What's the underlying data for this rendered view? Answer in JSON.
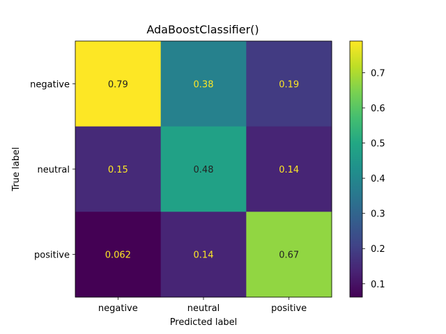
{
  "chart_data": {
    "type": "heatmap",
    "title": "AdaBoostClassifier()",
    "xlabel": "Predicted label",
    "ylabel": "True label",
    "x_categories": [
      "negative",
      "neutral",
      "positive"
    ],
    "y_categories": [
      "negative",
      "neutral",
      "positive"
    ],
    "values": [
      [
        0.79,
        0.38,
        0.19
      ],
      [
        0.15,
        0.48,
        0.14
      ],
      [
        0.062,
        0.14,
        0.67
      ]
    ],
    "value_labels": [
      [
        "0.79",
        "0.38",
        "0.19"
      ],
      [
        "0.15",
        "0.48",
        "0.14"
      ],
      [
        "0.062",
        "0.14",
        "0.67"
      ]
    ],
    "colormap": "viridis",
    "color_range": [
      0.062,
      0.79
    ],
    "colorbar_ticks": [
      0.1,
      0.2,
      0.3,
      0.4,
      0.5,
      0.6,
      0.7
    ],
    "colorbar_tick_labels": [
      "0.1",
      "0.2",
      "0.3",
      "0.4",
      "0.5",
      "0.6",
      "0.7"
    ],
    "colors": {
      "text_on_dark": "#fde725",
      "text_on_light": "#222222"
    }
  }
}
